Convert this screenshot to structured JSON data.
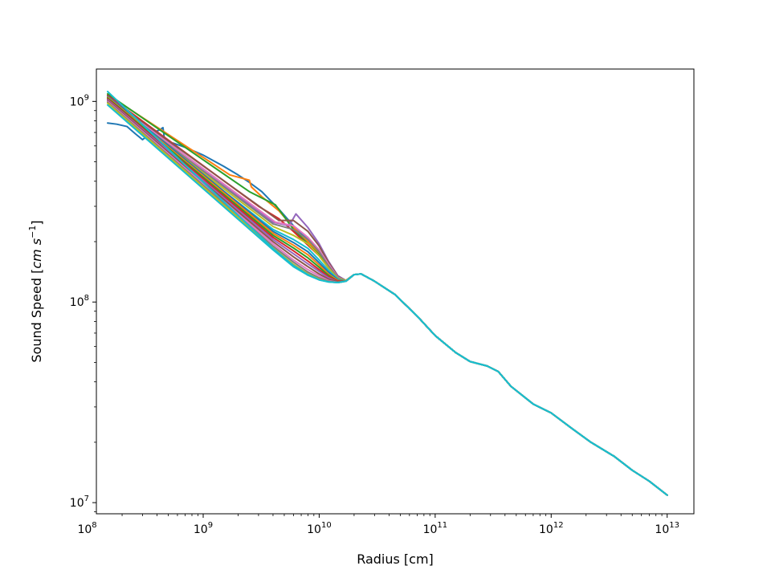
{
  "chart_data": {
    "type": "line",
    "xlabel": "Radius [cm]",
    "ylabel_main": "Sound Speed [",
    "ylabel_unit": "cm s",
    "ylabel_exp": "−1",
    "ylabel_close": "]",
    "xscale": "log",
    "yscale": "log",
    "xlim": [
      120000000.0,
      17000000000000.0
    ],
    "ylim": [
      8800000.0,
      1450000000.0
    ],
    "grid": false,
    "x_ticks": [
      {
        "base": "10",
        "exp": "8",
        "value": 100000000.0
      },
      {
        "base": "10",
        "exp": "9",
        "value": 1000000000.0
      },
      {
        "base": "10",
        "exp": "10",
        "value": 10000000000.0
      },
      {
        "base": "10",
        "exp": "11",
        "value": 100000000000.0
      },
      {
        "base": "10",
        "exp": "12",
        "value": 1000000000000.0
      },
      {
        "base": "10",
        "exp": "13",
        "value": 10000000000000.0
      }
    ],
    "y_ticks": [
      {
        "base": "10",
        "exp": "7",
        "value": 10000000.0
      },
      {
        "base": "10",
        "exp": "8",
        "value": 100000000.0
      },
      {
        "base": "10",
        "exp": "9",
        "value": 1000000000.0
      }
    ],
    "shared_tail": {
      "x": [
        20000000000.0,
        23000000000.0,
        30000000000.0,
        45000000000.0,
        70000000000.0,
        100000000000.0,
        150000000000.0,
        200000000000.0,
        280000000000.0,
        350000000000.0,
        450000000000.0,
        700000000000.0,
        1000000000000.0,
        1500000000000.0,
        2200000000000.0,
        3500000000000.0,
        5000000000000.0,
        7000000000000.0,
        10000000000000.0
      ],
      "y": [
        137000000.0,
        138000000.0,
        127000000.0,
        109000000.0,
        85000000.0,
        68000000.0,
        56000000.0,
        50500000.0,
        48000000.0,
        45000000.0,
        38000000.0,
        31000000.0,
        28000000.0,
        23500000.0,
        20000000.0,
        17000000.0,
        14500000.0,
        12800000.0,
        10900000.0
      ]
    },
    "series": [
      {
        "color": "#1f77b4",
        "x": [
          150000000.0,
          180000000.0,
          220000000.0,
          260000000.0,
          300000000.0,
          350000000.0,
          420000000.0,
          450000000.0,
          480000000.0,
          550000000.0,
          700000000.0,
          1000000000.0,
          1500000000.0,
          2000000000.0,
          2500000000.0,
          3200000000.0,
          4500000000.0,
          6000000000.0,
          8000000000.0,
          10000000000.0,
          12000000000.0,
          14500000000.0,
          17000000000.0,
          20000000000.0
        ],
        "y": [
          780000000.0,
          770000000.0,
          750000000.0,
          690000000.0,
          645000000.0,
          690000000.0,
          720000000.0,
          740000000.0,
          560000000.0,
          620000000.0,
          590000000.0,
          540000000.0,
          475000000.0,
          430000000.0,
          395000000.0,
          355000000.0,
          290000000.0,
          240000000.0,
          205000000.0,
          180000000.0,
          155000000.0,
          135000000.0,
          128000000.0,
          137000000.0
        ]
      },
      {
        "color": "#ff7f0e",
        "x": [
          150000000.0,
          1700000000.0,
          2500000000.0,
          2600000000.0,
          3200000000.0,
          4500000000.0,
          6000000000.0,
          8000000000.0,
          10000000000.0,
          12000000000.0,
          14500000000.0,
          17000000000.0,
          20000000000.0
        ],
        "y": [
          1080000000.0,
          430000000.0,
          405000000.0,
          375000000.0,
          335000000.0,
          285000000.0,
          235000000.0,
          200000000.0,
          175000000.0,
          152000000.0,
          134000000.0,
          128000000.0,
          137000000.0
        ]
      },
      {
        "color": "#2ca02c",
        "x": [
          150000000.0,
          2500000000.0,
          4200000000.0,
          4800000000.0,
          6000000000.0,
          8000000000.0,
          10000000000.0,
          12000000000.0,
          14500000000.0,
          17000000000.0,
          20000000000.0
        ],
        "y": [
          1090000000.0,
          355000000.0,
          305000000.0,
          275000000.0,
          230000000.0,
          195000000.0,
          172000000.0,
          150000000.0,
          133000000.0,
          128000000.0,
          137000000.0
        ]
      },
      {
        "color": "#d62728",
        "x": [
          150000000.0,
          3000000000.0,
          4500000000.0,
          6000000000.0,
          8000000000.0,
          10000000000.0,
          12000000000.0,
          14500000000.0,
          17000000000.0,
          20000000000.0
        ],
        "y": [
          1070000000.0,
          300000000.0,
          260000000.0,
          225000000.0,
          192000000.0,
          170000000.0,
          148000000.0,
          132000000.0,
          128000000.0,
          137000000.0
        ]
      },
      {
        "color": "#9467bd",
        "x": [
          150000000.0,
          4000000000.0,
          5500000000.0,
          6300000000.0,
          8000000000.0,
          10000000000.0,
          12000000000.0,
          14500000000.0,
          17000000000.0,
          20000000000.0
        ],
        "y": [
          1060000000.0,
          250000000.0,
          240000000.0,
          275000000.0,
          235000000.0,
          195000000.0,
          160000000.0,
          135000000.0,
          128000000.0,
          137000000.0
        ]
      },
      {
        "color": "#8c564b",
        "x": [
          150000000.0,
          4500000000.0,
          6000000000.0,
          8000000000.0,
          10000000000.0,
          12000000000.0,
          14500000000.0,
          17000000000.0,
          20000000000.0
        ],
        "y": [
          1050000000.0,
          255000000.0,
          255000000.0,
          225000000.0,
          190000000.0,
          158000000.0,
          134000000.0,
          128000000.0,
          137000000.0
        ]
      },
      {
        "color": "#e377c2",
        "x": [
          150000000.0,
          4200000000.0,
          6000000000.0,
          8000000000.0,
          10000000000.0,
          12000000000.0,
          14500000000.0,
          17000000000.0,
          20000000000.0
        ],
        "y": [
          1040000000.0,
          250000000.0,
          240000000.0,
          210000000.0,
          182000000.0,
          155000000.0,
          133000000.0,
          128000000.0,
          137000000.0
        ]
      },
      {
        "color": "#7f7f7f",
        "x": [
          150000000.0,
          4000000000.0,
          6000000000.0,
          8000000000.0,
          10000000000.0,
          12000000000.0,
          14500000000.0,
          17000000000.0,
          20000000000.0
        ],
        "y": [
          1030000000.0,
          245000000.0,
          230000000.0,
          205000000.0,
          178000000.0,
          152000000.0,
          132000000.0,
          128000000.0,
          137000000.0
        ]
      },
      {
        "color": "#bcbd22",
        "x": [
          150000000.0,
          4000000000.0,
          6000000000.0,
          8000000000.0,
          10000000000.0,
          12000000000.0,
          14500000000.0,
          17000000000.0,
          20000000000.0
        ],
        "y": [
          1020000000.0,
          238000000.0,
          215000000.0,
          195000000.0,
          170000000.0,
          148000000.0,
          131000000.0,
          128000000.0,
          137000000.0
        ]
      },
      {
        "color": "#17becf",
        "x": [
          150000000.0,
          4000000000.0,
          6000000000.0,
          8000000000.0,
          10000000000.0,
          12000000000.0,
          14500000000.0,
          17000000000.0,
          20000000000.0
        ],
        "y": [
          1000000000.0,
          230000000.0,
          205000000.0,
          185000000.0,
          162000000.0,
          144000000.0,
          130000000.0,
          127000000.0,
          137000000.0
        ]
      },
      {
        "color": "#1f77b4",
        "x": [
          150000000.0,
          4000000000.0,
          6000000000.0,
          8000000000.0,
          10000000000.0,
          12000000000.0,
          14500000000.0,
          17000000000.0,
          20000000000.0
        ],
        "y": [
          1060000000.0,
          225000000.0,
          198000000.0,
          178000000.0,
          157000000.0,
          141000000.0,
          129000000.0,
          127000000.0,
          137000000.0
        ]
      },
      {
        "color": "#ff7f0e",
        "x": [
          150000000.0,
          4000000000.0,
          6000000000.0,
          8000000000.0,
          10000000000.0,
          12000000000.0,
          14500000000.0,
          17000000000.0,
          20000000000.0
        ],
        "y": [
          1050000000.0,
          220000000.0,
          192000000.0,
          172000000.0,
          153000000.0,
          138000000.0,
          128000000.0,
          127000000.0,
          137000000.0
        ]
      },
      {
        "color": "#2ca02c",
        "x": [
          150000000.0,
          4000000000.0,
          6000000000.0,
          8000000000.0,
          10000000000.0,
          12000000000.0,
          14500000000.0,
          17000000000.0,
          20000000000.0
        ],
        "y": [
          1040000000.0,
          215000000.0,
          186000000.0,
          166000000.0,
          149000000.0,
          136000000.0,
          127000000.0,
          127000000.0,
          137000000.0
        ]
      },
      {
        "color": "#d62728",
        "x": [
          150000000.0,
          4000000000.0,
          6000000000.0,
          8000000000.0,
          10000000000.0,
          12000000000.0,
          14500000000.0,
          17000000000.0,
          20000000000.0
        ],
        "y": [
          1030000000.0,
          210000000.0,
          180000000.0,
          160000000.0,
          145000000.0,
          134000000.0,
          127000000.0,
          127000000.0,
          137000000.0
        ]
      },
      {
        "color": "#9467bd",
        "x": [
          150000000.0,
          4000000000.0,
          6000000000.0,
          8000000000.0,
          10000000000.0,
          12000000000.0,
          14500000000.0,
          17000000000.0,
          20000000000.0
        ],
        "y": [
          1020000000.0,
          205000000.0,
          174000000.0,
          155000000.0,
          142000000.0,
          132000000.0,
          126000000.0,
          127000000.0,
          137000000.0
        ]
      },
      {
        "color": "#8c564b",
        "x": [
          150000000.0,
          4000000000.0,
          6000000000.0,
          8000000000.0,
          10000000000.0,
          12000000000.0,
          14500000000.0,
          17000000000.0,
          20000000000.0
        ],
        "y": [
          1010000000.0,
          200000000.0,
          168000000.0,
          150000000.0,
          138000000.0,
          130000000.0,
          126000000.0,
          127000000.0,
          137000000.0
        ]
      },
      {
        "color": "#e377c2",
        "x": [
          150000000.0,
          4000000000.0,
          6000000000.0,
          8000000000.0,
          10000000000.0,
          12000000000.0,
          14500000000.0,
          17000000000.0,
          20000000000.0
        ],
        "y": [
          1000000000.0,
          195000000.0,
          162000000.0,
          145000000.0,
          135000000.0,
          128000000.0,
          125000000.0,
          127000000.0,
          137000000.0
        ]
      },
      {
        "color": "#7f7f7f",
        "x": [
          150000000.0,
          4000000000.0,
          6000000000.0,
          8000000000.0,
          10000000000.0,
          12000000000.0,
          14500000000.0,
          17000000000.0,
          20000000000.0
        ],
        "y": [
          990000000.0,
          190000000.0,
          158000000.0,
          141000000.0,
          132000000.0,
          127000000.0,
          125000000.0,
          127000000.0,
          137000000.0
        ]
      },
      {
        "color": "#bcbd22",
        "x": [
          150000000.0,
          4000000000.0,
          6000000000.0,
          8000000000.0,
          10000000000.0,
          12000000000.0,
          14500000000.0,
          17000000000.0,
          20000000000.0
        ],
        "y": [
          980000000.0,
          186000000.0,
          154000000.0,
          138000000.0,
          130000000.0,
          126000000.0,
          125000000.0,
          127000000.0,
          137000000.0
        ]
      },
      {
        "color": "#17becf",
        "x": [
          150000000.0,
          4000000000.0,
          6000000000.0,
          8000000000.0,
          10000000000.0,
          12000000000.0,
          14500000000.0,
          17000000000.0,
          20000000000.0
        ],
        "y": [
          960000000.0,
          182000000.0,
          150000000.0,
          136000000.0,
          129000000.0,
          126000000.0,
          125000000.0,
          127000000.0,
          137000000.0
        ]
      },
      {
        "color": "#17becf",
        "x": [
          150000000.0,
          155000000.0,
          4000000000.0,
          6000000000.0,
          8000000000.0,
          10000000000.0,
          12000000000.0,
          14500000000.0,
          17000000000.0,
          20000000000.0
        ],
        "y": [
          1120000000.0,
          1100000000.0,
          185000000.0,
          152000000.0,
          137000000.0,
          129000000.0,
          126000000.0,
          125000000.0,
          127000000.0,
          137000000.0
        ]
      }
    ]
  }
}
